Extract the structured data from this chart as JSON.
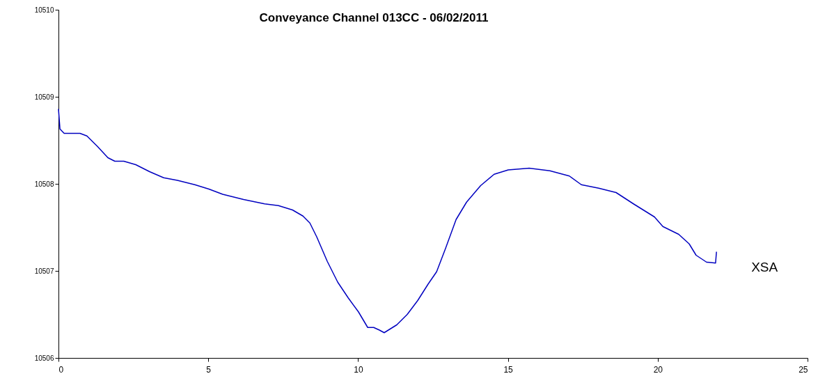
{
  "chart_data": {
    "type": "line",
    "title": "Conveyance  Channel 013CC  - 06/02/2011",
    "xlim": [
      0,
      25
    ],
    "xticks": [
      0,
      5,
      10,
      15,
      20,
      25
    ],
    "ylim": [
      10506,
      10510
    ],
    "yticks": [
      10506,
      10507,
      10508,
      10509,
      10510
    ],
    "grid": false,
    "legend": false,
    "marker": "none",
    "line_style": "solid",
    "series": [
      {
        "name": "XSA",
        "color": "#0000c0",
        "x": [
          0,
          0.05,
          0.19,
          0.37,
          0.72,
          0.95,
          1.3,
          1.65,
          1.88,
          2.18,
          2.58,
          3.04,
          3.51,
          3.97,
          4.55,
          5.02,
          5.48,
          6.18,
          6.88,
          7.34,
          7.81,
          8.16,
          8.39,
          8.62,
          8.97,
          9.32,
          9.67,
          10.01,
          10.32,
          10.52,
          10.71,
          10.87,
          11.29,
          11.64,
          11.99,
          12.34,
          12.62,
          12.92,
          13.27,
          13.62,
          14.09,
          14.54,
          15.01,
          15.71,
          16.4,
          17.05,
          17.45,
          18.03,
          18.61,
          19.19,
          19.89,
          20.17,
          20.7,
          21.05,
          21.28,
          21.63,
          21.93,
          21.96
        ],
        "values": [
          10508.86,
          10508.63,
          10508.58,
          10508.58,
          10508.58,
          10508.55,
          10508.43,
          10508.3,
          10508.26,
          10508.26,
          10508.22,
          10508.14,
          10508.07,
          10508.04,
          10507.99,
          10507.94,
          10507.88,
          10507.82,
          10507.77,
          10507.75,
          10507.7,
          10507.63,
          10507.55,
          10507.39,
          10507.11,
          10506.87,
          10506.69,
          10506.53,
          10506.35,
          10506.35,
          10506.32,
          10506.29,
          10506.38,
          10506.5,
          10506.66,
          10506.85,
          10506.99,
          10507.26,
          10507.59,
          10507.79,
          10507.98,
          10508.11,
          10508.16,
          10508.18,
          10508.15,
          10508.09,
          10507.99,
          10507.95,
          10507.9,
          10507.77,
          10507.62,
          10507.51,
          10507.42,
          10507.31,
          10507.18,
          10507.1,
          10507.09,
          10507.22
        ]
      }
    ]
  }
}
